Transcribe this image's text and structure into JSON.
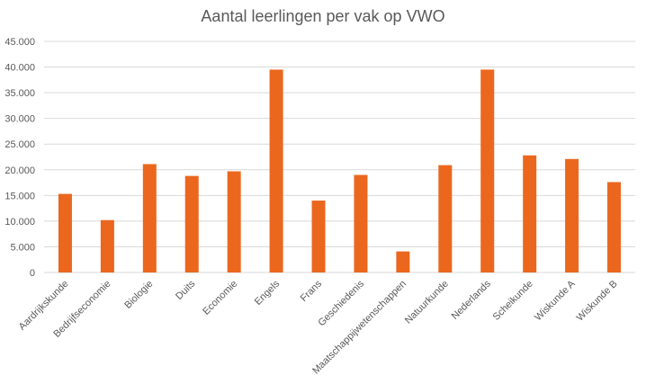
{
  "chart_data": {
    "type": "bar",
    "title": "Aantal leerlingen per vak op VWO",
    "xlabel": "",
    "ylabel": "",
    "ylim": [
      0,
      45000
    ],
    "yticks": [
      "0",
      "5.000",
      "10.000",
      "15.000",
      "20.000",
      "25.000",
      "30.000",
      "35.000",
      "40.000",
      "45.000"
    ],
    "grid": true,
    "bar_color": "#EB671E",
    "categories": [
      "Aardrijkskunde",
      "Bedrijfseconomie",
      "Biologie",
      "Duits",
      "Economie",
      "Engels",
      "Frans",
      "Geschiedenis",
      "Maatschappijwetenschappen",
      "Natuurkunde",
      "Nederlands",
      "Scheikunde",
      "Wiskunde A",
      "Wiskunde B"
    ],
    "values": [
      15300,
      10200,
      21100,
      18800,
      19700,
      39500,
      14000,
      19000,
      4100,
      20900,
      39500,
      22800,
      22100,
      17600
    ]
  }
}
